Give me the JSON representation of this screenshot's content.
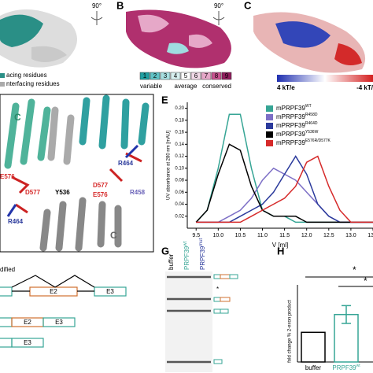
{
  "panels": {
    "a": {
      "line1": "acing residues",
      "line2": "nterfacing residues"
    },
    "rotation": [
      "90°",
      "90°"
    ],
    "b": {
      "label": "B",
      "scale": [
        "1",
        "2",
        "3",
        "4",
        "5",
        "6",
        "7",
        "8",
        "9"
      ],
      "scale_text": [
        "variable",
        "average",
        "conserved"
      ]
    },
    "c": {
      "label": "C",
      "low": "4 kT/e",
      "high": "-4 kT/"
    },
    "d": {
      "labels": [
        "C",
        "R464",
        "E576",
        "D577",
        "Y536",
        "D577",
        "E576",
        "R458",
        "R464",
        "C"
      ]
    },
    "f": {
      "text": "dified",
      "exons": [
        "E2",
        "E3",
        "E2",
        "E3",
        "E3"
      ]
    },
    "g": {
      "label": "G",
      "lanes": [
        "buffer",
        "PRPF39",
        "PRPF39"
      ],
      "lane_sup": [
        null,
        "wt",
        "mut"
      ],
      "star": "*"
    }
  },
  "chart_data": [
    {
      "type": "line",
      "label": "E",
      "x_label": "V [ml]",
      "y_label": "UV absorbance at 280 nm [mAU]",
      "x": [
        9.5,
        9.75,
        10,
        10.25,
        10.5,
        10.75,
        11,
        11.25,
        11.5,
        11.75,
        12,
        12.25,
        12.5,
        12.75,
        13,
        13.25,
        13.5
      ],
      "series": [
        {
          "name": "mPRPF39",
          "sup": "WT",
          "color": "#36a595",
          "values": [
            0.01,
            0.03,
            0.1,
            0.19,
            0.19,
            0.1,
            0.03,
            0.02,
            0.02,
            0.01,
            0.01,
            0.01,
            0.01,
            0.01,
            0.01,
            0.01,
            0.01
          ]
        },
        {
          "name": "mPRPF39",
          "sup": "R458D",
          "color": "#7d6fc6",
          "values": [
            0.01,
            0.01,
            0.01,
            0.02,
            0.03,
            0.05,
            0.08,
            0.1,
            0.09,
            0.08,
            0.06,
            0.04,
            0.02,
            0.01,
            0.01,
            0.01,
            0.01
          ]
        },
        {
          "name": "mPRPF39",
          "sup": "R464D",
          "color": "#2b3a9c",
          "values": [
            0.01,
            0.01,
            0.01,
            0.01,
            0.02,
            0.03,
            0.04,
            0.06,
            0.09,
            0.12,
            0.09,
            0.04,
            0.02,
            0.01,
            0.01,
            0.01,
            0.01
          ]
        },
        {
          "name": "mPRPF39",
          "sup": "Y536W",
          "color": "#000000",
          "values": [
            0.01,
            0.03,
            0.09,
            0.14,
            0.13,
            0.07,
            0.03,
            0.02,
            0.02,
            0.02,
            0.01,
            0.01,
            0.01,
            0.01,
            0.01,
            0.01,
            0.01
          ]
        },
        {
          "name": "mPRPF39",
          "sup": "E576R/D577K",
          "color": "#d62a2a",
          "values": [
            0.01,
            0.01,
            0.01,
            0.01,
            0.01,
            0.02,
            0.03,
            0.04,
            0.05,
            0.07,
            0.11,
            0.12,
            0.07,
            0.03,
            0.01,
            0.01,
            0.01
          ]
        }
      ],
      "xlim": [
        9.3,
        13.5
      ],
      "xticks": [
        9.5,
        {
          "value": 10,
          "label": "10.0"
        },
        10.5,
        {
          "value": 11,
          "label": "11.0"
        },
        11.5,
        {
          "value": 12,
          "label": "12.0"
        },
        12.5,
        {
          "value": 13,
          "label": "13.0"
        },
        13.5
      ],
      "ylim": [
        0,
        0.21
      ],
      "yticks": [
        {
          "value": 0.02,
          "label": "0.02"
        },
        {
          "value": 0.04,
          "label": "0.04"
        },
        {
          "value": 0.06,
          "label": "0.06"
        },
        {
          "value": 0.08,
          "label": "0.08"
        },
        {
          "value": 0.1,
          "label": "0.10"
        },
        {
          "value": 0.12,
          "label": "0.12"
        },
        {
          "value": 0.14,
          "label": "0.14"
        },
        {
          "value": 0.16,
          "label": "0.16"
        },
        {
          "value": 0.18,
          "label": "0.18"
        },
        {
          "value": 0.2,
          "label": "0.20"
        }
      ]
    },
    {
      "type": "bar",
      "label": "H",
      "y_label": "fold change % 2-exon product",
      "stars": [
        "*",
        "*"
      ],
      "categories": [
        "buffer",
        "PRPF39"
      ],
      "category_sup": [
        null,
        "wt"
      ],
      "values": [
        1,
        1.6
      ],
      "errors": [
        0,
        0.3
      ],
      "colors": [
        "#ffffff",
        "#ffffff"
      ],
      "edge_colors": [
        "#000000",
        "#36a595"
      ],
      "ylim": [
        0,
        2.6
      ]
    }
  ]
}
